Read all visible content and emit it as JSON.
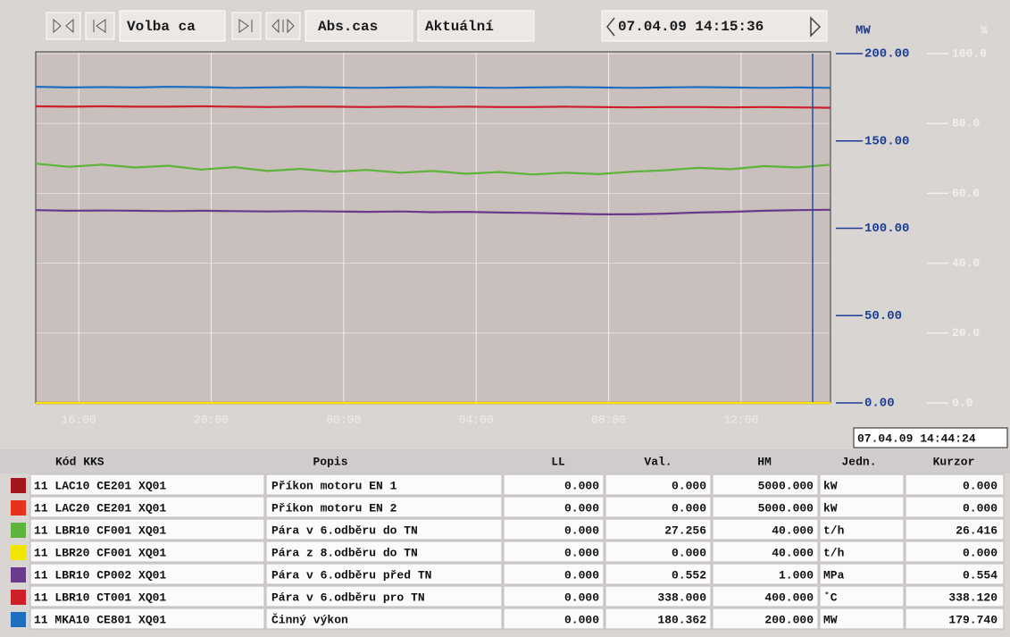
{
  "toolbar": {
    "selection": "Volba ca",
    "mode": "Abs.cas",
    "current": "Aktuální",
    "time": "07.04.09 14:15:36"
  },
  "chart_data": {
    "type": "line",
    "y_label": "%",
    "y2_label": "MW",
    "xlim": [
      14.7,
      38.7
    ],
    "xticks": [
      {
        "value": 16,
        "label": "16:00"
      },
      {
        "value": 20,
        "label": "20:00"
      },
      {
        "value": 24,
        "label": "00:00"
      },
      {
        "value": 28,
        "label": "04:00"
      },
      {
        "value": 32,
        "label": "08:00"
      },
      {
        "value": 36,
        "label": "12:00"
      }
    ],
    "ylim": [
      0,
      100
    ],
    "yticks": [
      {
        "value": 0,
        "label": "0.0"
      },
      {
        "value": 20,
        "label": "20.0"
      },
      {
        "value": 40,
        "label": "40.0"
      },
      {
        "value": 60,
        "label": "60.0"
      },
      {
        "value": 80,
        "label": "80.0"
      },
      {
        "value": 100,
        "label": "100.0"
      }
    ],
    "y2lim": [
      0,
      200
    ],
    "y2ticks": [
      {
        "value": 0,
        "label": "0.00"
      },
      {
        "value": 50,
        "label": "50.00"
      },
      {
        "value": 100,
        "label": "100.00"
      },
      {
        "value": 150,
        "label": "150.00"
      },
      {
        "value": 200,
        "label": "200.00"
      }
    ],
    "grid": true,
    "cursor": "07.04.09 14:44:24",
    "x": [
      14.7,
      15.7,
      16.7,
      17.7,
      18.7,
      19.7,
      20.7,
      21.7,
      22.7,
      23.7,
      24.7,
      25.7,
      26.7,
      27.7,
      28.7,
      29.7,
      30.7,
      31.7,
      32.7,
      33.7,
      34.7,
      35.7,
      36.7,
      37.7,
      38.7
    ],
    "series": [
      {
        "color": "#a3161c",
        "values": [
          0,
          0,
          0,
          0,
          0,
          0,
          0,
          0,
          0,
          0,
          0,
          0,
          0,
          0,
          0,
          0,
          0,
          0,
          0,
          0,
          0,
          0,
          0,
          0,
          0
        ]
      },
      {
        "color": "#e6321c",
        "values": [
          0,
          0,
          0,
          0,
          0,
          0,
          0,
          0,
          0,
          0,
          0,
          0,
          0,
          0,
          0,
          0,
          0,
          0,
          0,
          0,
          0,
          0,
          0,
          0,
          0
        ]
      },
      {
        "color": "#5cb43a",
        "values": [
          68.5,
          67.6,
          68.2,
          67.4,
          67.9,
          66.8,
          67.5,
          66.4,
          67.0,
          66.2,
          66.7,
          65.9,
          66.4,
          65.6,
          66.1,
          65.4,
          65.9,
          65.5,
          66.2,
          66.6,
          67.3,
          66.9,
          67.8,
          67.4,
          68.2
        ]
      },
      {
        "color": "#f2e600",
        "values": [
          0,
          0,
          0,
          0,
          0,
          0,
          0,
          0,
          0,
          0,
          0,
          0,
          0,
          0,
          0,
          0,
          0,
          0,
          0,
          0,
          0,
          0,
          0,
          0,
          0
        ]
      },
      {
        "color": "#6a3a8c",
        "values": [
          55.2,
          55.0,
          55.1,
          55.0,
          54.9,
          55.0,
          54.9,
          54.8,
          54.9,
          54.8,
          54.7,
          54.8,
          54.6,
          54.7,
          54.5,
          54.4,
          54.2,
          54.0,
          54.0,
          54.2,
          54.5,
          54.7,
          55.0,
          55.2,
          55.3
        ]
      },
      {
        "color": "#cc1f2a",
        "values": [
          84.9,
          84.8,
          84.9,
          84.8,
          84.8,
          84.9,
          84.8,
          84.7,
          84.8,
          84.8,
          84.7,
          84.8,
          84.7,
          84.8,
          84.7,
          84.7,
          84.8,
          84.7,
          84.6,
          84.7,
          84.7,
          84.6,
          84.7,
          84.6,
          84.5
        ]
      },
      {
        "color": "#1f6fc0",
        "values": [
          90.5,
          90.3,
          90.4,
          90.3,
          90.5,
          90.4,
          90.2,
          90.3,
          90.4,
          90.3,
          90.2,
          90.3,
          90.4,
          90.3,
          90.2,
          90.3,
          90.4,
          90.3,
          90.2,
          90.3,
          90.4,
          90.3,
          90.2,
          90.3,
          90.2
        ]
      }
    ]
  },
  "table": {
    "header": [
      "Kód KKS",
      "Popis",
      "LL",
      "Val.",
      "HM",
      "Jedn.",
      "Kurzor"
    ],
    "rows": [
      [
        "11 LAC10 CE201 XQ01",
        "Příkon motoru EN 1",
        "0.000",
        "0.000",
        "5000.000",
        "kW",
        "0.000"
      ],
      [
        "11 LAC20 CE201 XQ01",
        "Příkon motoru EN 2",
        "0.000",
        "0.000",
        "5000.000",
        "kW",
        "0.000"
      ],
      [
        "11 LBR10 CF001 XQ01",
        "Pára v 6.odběru do TN",
        "0.000",
        "27.256",
        "40.000",
        "t/h",
        "26.416"
      ],
      [
        "11 LBR20 CF001 XQ01",
        "Pára z 8.odběru do TN",
        "0.000",
        "0.000",
        "40.000",
        "t/h",
        "0.000"
      ],
      [
        "11 LBR10 CP002 XQ01",
        "Pára v 6.odběru před TN",
        "0.000",
        "0.552",
        "1.000",
        "MPa",
        "0.554"
      ],
      [
        "11 LBR10 CT001 XQ01",
        "Pára v 6.odběru pro TN",
        "0.000",
        "338.000",
        "400.000",
        "˚C",
        "338.120"
      ],
      [
        "11 MKA10 CE801 XQ01",
        "Činný výkon",
        "0.000",
        "180.362",
        "200.000",
        "MW",
        "179.740"
      ]
    ]
  }
}
